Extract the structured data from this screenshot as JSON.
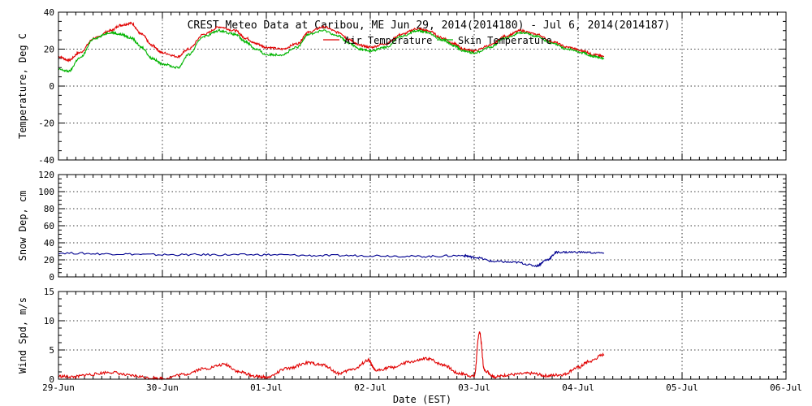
{
  "chart_data": [
    {
      "type": "line",
      "title": "CREST Meteo Data at Caribou, ME   Jun 29, 2014(2014180) - Jul  6, 2014(2014187)",
      "ylabel": "Temperature, Deg C",
      "xlabel": "",
      "ylim": [
        -40,
        40
      ],
      "yticks": [
        -40,
        -20,
        0,
        20,
        40
      ],
      "xlim_days": [
        0,
        7
      ],
      "grid": true,
      "legend": "top-center",
      "series": [
        {
          "name": "Air Temperature",
          "color": "#e00000",
          "x": [
            0,
            0.1,
            0.2,
            0.35,
            0.5,
            0.6,
            0.7,
            0.8,
            0.9,
            1.0,
            1.15,
            1.25,
            1.4,
            1.55,
            1.7,
            1.8,
            1.9,
            2.0,
            2.15,
            2.3,
            2.4,
            2.55,
            2.7,
            2.8,
            2.9,
            3.0,
            3.15,
            3.3,
            3.45,
            3.55,
            3.7,
            3.8,
            3.9,
            4.0,
            4.15,
            4.3,
            4.45,
            4.6,
            4.75,
            4.9,
            5.05,
            5.15,
            5.25
          ],
          "values": [
            16,
            14,
            18,
            26,
            30,
            33,
            34,
            28,
            22,
            18,
            16,
            20,
            28,
            32,
            30,
            26,
            23,
            21,
            20,
            23,
            29,
            32,
            29,
            25,
            22,
            21,
            23,
            28,
            31,
            30,
            26,
            23,
            20,
            19,
            22,
            27,
            30,
            28,
            24,
            21,
            19,
            17,
            16
          ]
        },
        {
          "name": "Skin Temperature",
          "color": "#00b400",
          "x": [
            0,
            0.1,
            0.2,
            0.35,
            0.5,
            0.6,
            0.7,
            0.8,
            0.9,
            1.0,
            1.15,
            1.25,
            1.4,
            1.55,
            1.7,
            1.8,
            1.9,
            2.0,
            2.15,
            2.3,
            2.4,
            2.55,
            2.7,
            2.8,
            2.9,
            3.0,
            3.15,
            3.3,
            3.45,
            3.55,
            3.7,
            3.8,
            3.9,
            4.0,
            4.15,
            4.3,
            4.45,
            4.6,
            4.75,
            4.9,
            5.05,
            5.15,
            5.25
          ],
          "values": [
            9,
            8,
            15,
            26,
            29,
            28,
            26,
            21,
            15,
            12,
            10,
            17,
            27,
            30,
            28,
            24,
            20,
            17,
            17,
            21,
            28,
            30,
            27,
            23,
            20,
            19,
            21,
            27,
            30,
            29,
            25,
            22,
            19,
            18,
            21,
            26,
            29,
            27,
            23,
            20,
            18,
            16,
            15
          ]
        }
      ]
    },
    {
      "type": "line",
      "title": "",
      "ylabel": "Snow Dep, cm",
      "xlabel": "",
      "ylim": [
        0,
        120
      ],
      "yticks": [
        0,
        20,
        40,
        60,
        80,
        100,
        120
      ],
      "xlim_days": [
        0,
        7
      ],
      "grid": true,
      "series": [
        {
          "name": "",
          "color": "#000090",
          "x": [
            0,
            0.5,
            1.0,
            1.5,
            2.0,
            2.5,
            3.0,
            3.5,
            3.9,
            4.0,
            4.2,
            4.4,
            4.6,
            4.7,
            4.8,
            5.0,
            5.25
          ],
          "values": [
            28,
            27,
            26,
            26,
            26,
            25,
            25,
            24,
            25,
            23,
            18,
            17,
            13,
            20,
            29,
            29,
            28
          ]
        }
      ]
    },
    {
      "type": "line",
      "title": "",
      "ylabel": "Wind Spd, m/s",
      "xlabel": "Date (EST)",
      "ylim": [
        0,
        15
      ],
      "yticks": [
        0,
        5,
        10,
        15
      ],
      "xlim_days": [
        0,
        7
      ],
      "x_tick_labels": [
        "29-Jun",
        "30-Jun",
        "01-Jul",
        "02-Jul",
        "03-Jul",
        "04-Jul",
        "05-Jul",
        "06-Jul"
      ],
      "grid": true,
      "series": [
        {
          "name": "",
          "color": "#e00000",
          "x": [
            0,
            0.15,
            0.3,
            0.5,
            0.7,
            0.9,
            1.0,
            1.2,
            1.4,
            1.6,
            1.75,
            1.9,
            2.0,
            2.2,
            2.4,
            2.55,
            2.7,
            2.85,
            2.98,
            3.05,
            3.2,
            3.4,
            3.55,
            3.7,
            3.85,
            4.0,
            4.05,
            4.1,
            4.2,
            4.35,
            4.55,
            4.7,
            4.85,
            5.0,
            5.1,
            5.25
          ],
          "values": [
            0.5,
            0.4,
            0.8,
            1.2,
            0.6,
            0.2,
            0.1,
            0.8,
            1.8,
            2.5,
            1.2,
            0.5,
            0.3,
            1.8,
            2.8,
            2.4,
            1.0,
            1.8,
            3.2,
            1.5,
            2.0,
            3.0,
            3.5,
            2.5,
            1.0,
            0.5,
            8.0,
            1.5,
            0.4,
            0.8,
            1.0,
            0.6,
            0.8,
            2.0,
            3.0,
            4.2
          ]
        }
      ]
    }
  ]
}
